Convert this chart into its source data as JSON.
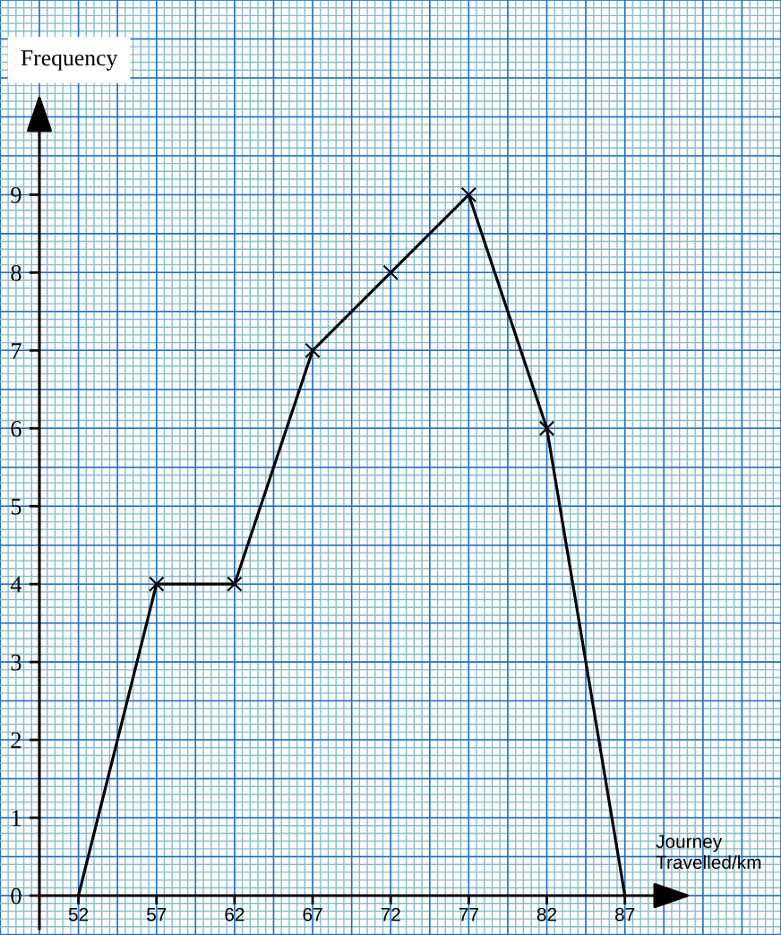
{
  "chart_data": {
    "type": "line",
    "xlabel": "Journey\nTravelled/km",
    "ylabel": "Frequency",
    "x": [
      52,
      57,
      62,
      67,
      72,
      77,
      82,
      87
    ],
    "series": [
      {
        "color": "#000000",
        "values": [
          0,
          4,
          4,
          7,
          8,
          9,
          6,
          0
        ]
      }
    ],
    "xlim": [
      49.5,
      97
    ],
    "ylim": [
      0,
      11.5
    ],
    "xticks": [
      52,
      57,
      62,
      67,
      72,
      77,
      82,
      87
    ],
    "yticks": [
      0,
      1,
      2,
      3,
      4,
      5,
      6,
      7,
      8,
      9
    ],
    "grid": true,
    "marker": "cross",
    "line_style": "solid"
  }
}
